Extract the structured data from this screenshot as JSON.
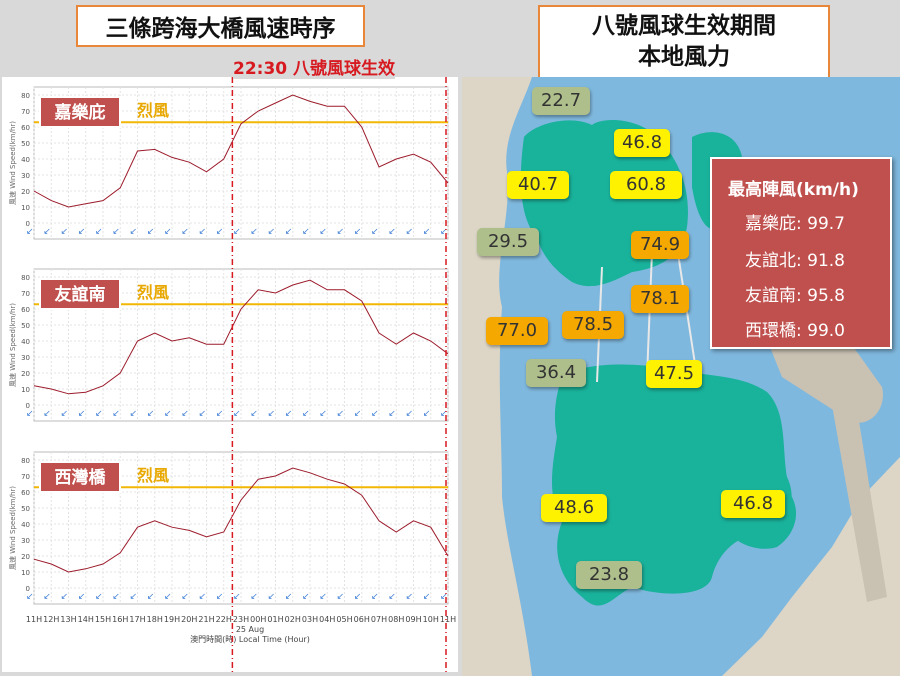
{
  "title_left": "三條跨海大橋風速時序",
  "title_right_line1": "八號風球生效期間",
  "title_right_line2": "本地風力",
  "signal_label": "22:30 八號風球生效",
  "gale_label": "烈風",
  "date_label": "25 Aug",
  "xlabel": "澳門時間(時) Local Time (Hour)",
  "ylabel": "風速 Wind Speed(km/hr)",
  "max_gust": {
    "title": "最高陣風(km/h)",
    "rows": [
      {
        "name": "嘉樂庇:",
        "value": "99.7"
      },
      {
        "name": "友誼北:",
        "value": "91.8"
      },
      {
        "name": "友誼南:",
        "value": "95.8"
      },
      {
        "name": "西環橋:",
        "value": "99.0"
      }
    ]
  },
  "map_labels": [
    {
      "text": "22.7",
      "level": "green"
    },
    {
      "text": "46.8",
      "level": "yellow"
    },
    {
      "text": "40.7",
      "level": "yellow"
    },
    {
      "text": "60.8",
      "level": "yellow"
    },
    {
      "text": "29.5",
      "level": "green"
    },
    {
      "text": "74.9",
      "level": "orange"
    },
    {
      "text": "78.1",
      "level": "orange"
    },
    {
      "text": "77.0",
      "level": "orange"
    },
    {
      "text": "78.5",
      "level": "orange"
    },
    {
      "text": "36.4",
      "level": "green"
    },
    {
      "text": "47.5",
      "level": "yellow"
    },
    {
      "text": "48.6",
      "level": "yellow"
    },
    {
      "text": "46.8",
      "level": "yellow"
    },
    {
      "text": "23.8",
      "level": "green"
    }
  ],
  "colors": {
    "line": "#9c1c2c",
    "gale_line": "#f2b705",
    "gale_text": "#e8a800",
    "signal_line": "#d71920",
    "station_box": "#c0504d",
    "arrow": "#3f7fd6",
    "sea": "#7fb8de",
    "land": "#ddd6c6",
    "green_land": "#19b29b"
  },
  "chart_data": [
    {
      "type": "line",
      "title": "嘉樂庇",
      "gale_threshold": 63,
      "ylim": [
        -10,
        85
      ],
      "yticks": [
        0,
        10,
        20,
        30,
        40,
        50,
        60,
        70,
        80
      ],
      "x": [
        "11H",
        "12H",
        "13H",
        "14H",
        "15H",
        "16H",
        "17H",
        "18H",
        "19H",
        "20H",
        "21H",
        "22H",
        "23H",
        "00H",
        "01H",
        "02H",
        "03H",
        "04H",
        "05H",
        "06H",
        "07H",
        "08H",
        "09H",
        "10H",
        "11H"
      ],
      "values": [
        20,
        14,
        10,
        12,
        14,
        22,
        45,
        46,
        41,
        38,
        32,
        40,
        62,
        70,
        75,
        80,
        76,
        73,
        73,
        60,
        35,
        40,
        43,
        38,
        25
      ]
    },
    {
      "type": "line",
      "title": "友誼南",
      "gale_threshold": 63,
      "ylim": [
        -10,
        85
      ],
      "yticks": [
        0,
        10,
        20,
        30,
        40,
        50,
        60,
        70,
        80
      ],
      "x": [
        "11H",
        "12H",
        "13H",
        "14H",
        "15H",
        "16H",
        "17H",
        "18H",
        "19H",
        "20H",
        "21H",
        "22H",
        "23H",
        "00H",
        "01H",
        "02H",
        "03H",
        "04H",
        "05H",
        "06H",
        "07H",
        "08H",
        "09H",
        "10H",
        "11H"
      ],
      "values": [
        12,
        10,
        7,
        8,
        12,
        20,
        40,
        45,
        40,
        42,
        38,
        38,
        60,
        72,
        70,
        75,
        78,
        72,
        72,
        65,
        45,
        38,
        45,
        40,
        32
      ]
    },
    {
      "type": "line",
      "title": "西灣橋",
      "gale_threshold": 63,
      "ylim": [
        -10,
        85
      ],
      "yticks": [
        0,
        10,
        20,
        30,
        40,
        50,
        60,
        70,
        80
      ],
      "x": [
        "11H",
        "12H",
        "13H",
        "14H",
        "15H",
        "16H",
        "17H",
        "18H",
        "19H",
        "20H",
        "21H",
        "22H",
        "23H",
        "00H",
        "01H",
        "02H",
        "03H",
        "04H",
        "05H",
        "06H",
        "07H",
        "08H",
        "09H",
        "10H",
        "11H"
      ],
      "values": [
        18,
        15,
        10,
        12,
        15,
        22,
        38,
        42,
        38,
        36,
        32,
        35,
        55,
        68,
        70,
        75,
        72,
        68,
        65,
        58,
        42,
        35,
        42,
        38,
        20
      ]
    }
  ]
}
